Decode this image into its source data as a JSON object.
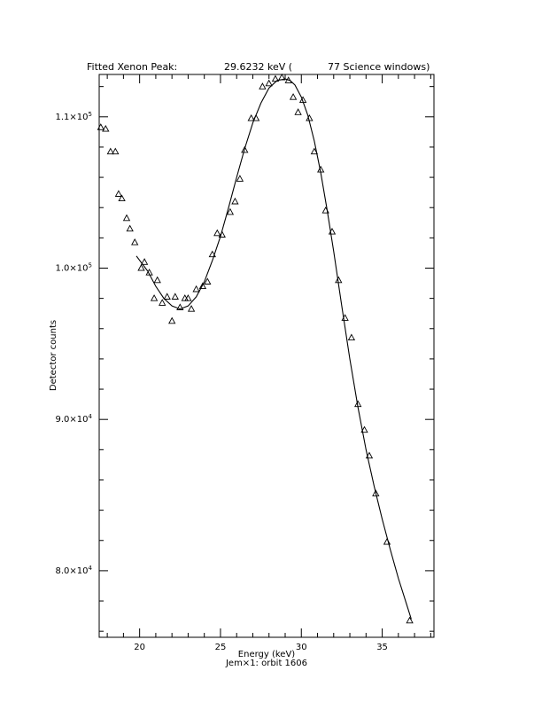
{
  "chart_data": {
    "type": "scatter",
    "title_parts": {
      "label": "Fitted Xenon Peak:",
      "energy": "29.6232 keV (",
      "windows": "77 Science windows)"
    },
    "xlabel": "Energy (keV)",
    "ylabel": "Detector counts",
    "subtitle": "Jem×1: orbit 1606",
    "xlim": [
      17.5,
      38.2
    ],
    "ylim": [
      75600,
      112800
    ],
    "x_ticks": [
      20,
      25,
      30,
      35
    ],
    "x_tick_labels": [
      "20",
      "25",
      "30",
      "35"
    ],
    "y_ticks": [
      80000,
      90000,
      100000,
      110000
    ],
    "y_tick_labels": [
      {
        "mant": "8.0×10",
        "exp": "4"
      },
      {
        "mant": "9.0×10",
        "exp": "4"
      },
      {
        "mant": "1.0×10",
        "exp": "5"
      },
      {
        "mant": "1.1×10",
        "exp": "5"
      }
    ],
    "grid": false,
    "series": [
      {
        "marker": "triangle",
        "points": [
          [
            17.6,
            109300
          ],
          [
            17.9,
            109200
          ],
          [
            18.2,
            107700
          ],
          [
            18.5,
            107700
          ],
          [
            18.7,
            104900
          ],
          [
            18.9,
            104600
          ],
          [
            19.2,
            103300
          ],
          [
            19.4,
            102600
          ],
          [
            19.7,
            101700
          ],
          [
            20.1,
            100000
          ],
          [
            20.3,
            100400
          ],
          [
            20.6,
            99700
          ],
          [
            20.9,
            98000
          ],
          [
            21.1,
            99200
          ],
          [
            21.4,
            97700
          ],
          [
            21.7,
            98100
          ],
          [
            22.0,
            96500
          ],
          [
            22.2,
            98100
          ],
          [
            22.5,
            97400
          ],
          [
            22.8,
            98000
          ],
          [
            23.0,
            98000
          ],
          [
            23.2,
            97300
          ],
          [
            23.5,
            98600
          ],
          [
            23.9,
            98800
          ],
          [
            24.2,
            99100
          ],
          [
            24.5,
            100900
          ],
          [
            24.8,
            102300
          ],
          [
            25.1,
            102200
          ],
          [
            25.6,
            103700
          ],
          [
            25.9,
            104400
          ],
          [
            26.2,
            105900
          ],
          [
            26.5,
            107800
          ],
          [
            26.9,
            109900
          ],
          [
            27.2,
            109900
          ],
          [
            27.6,
            112000
          ],
          [
            28.0,
            112200
          ],
          [
            28.4,
            112500
          ],
          [
            28.8,
            112600
          ],
          [
            29.2,
            112400
          ],
          [
            29.5,
            111300
          ],
          [
            29.8,
            110300
          ],
          [
            30.1,
            111100
          ],
          [
            30.5,
            109900
          ],
          [
            30.8,
            107700
          ],
          [
            31.2,
            106500
          ],
          [
            31.5,
            103800
          ],
          [
            31.9,
            102400
          ],
          [
            32.3,
            99200
          ],
          [
            32.7,
            96700
          ],
          [
            33.1,
            95400
          ],
          [
            33.5,
            91000
          ],
          [
            33.9,
            89300
          ],
          [
            34.2,
            87600
          ],
          [
            34.6,
            85100
          ],
          [
            35.3,
            81900
          ],
          [
            36.7,
            76700
          ]
        ]
      }
    ],
    "fit_curve": [
      [
        19.8,
        100800
      ],
      [
        20.5,
        99800
      ],
      [
        21.0,
        98800
      ],
      [
        21.5,
        98000
      ],
      [
        22.0,
        97500
      ],
      [
        22.5,
        97300
      ],
      [
        23.0,
        97500
      ],
      [
        23.5,
        98100
      ],
      [
        24.0,
        99100
      ],
      [
        24.5,
        100500
      ],
      [
        25.0,
        102100
      ],
      [
        25.5,
        104000
      ],
      [
        26.0,
        106000
      ],
      [
        26.5,
        107900
      ],
      [
        27.0,
        109600
      ],
      [
        27.5,
        110900
      ],
      [
        28.0,
        111900
      ],
      [
        28.5,
        112400
      ],
      [
        29.0,
        112500
      ],
      [
        29.3,
        112400
      ],
      [
        29.6,
        112100
      ],
      [
        30.0,
        111300
      ],
      [
        30.4,
        110100
      ],
      [
        30.8,
        108400
      ],
      [
        31.2,
        106300
      ],
      [
        31.6,
        103800
      ],
      [
        32.0,
        101100
      ],
      [
        32.5,
        97500
      ],
      [
        33.0,
        94000
      ],
      [
        33.5,
        90800
      ],
      [
        34.0,
        88000
      ],
      [
        34.5,
        85600
      ],
      [
        35.0,
        83400
      ],
      [
        35.5,
        81400
      ],
      [
        36.0,
        79500
      ],
      [
        36.5,
        77800
      ],
      [
        36.8,
        76800
      ]
    ]
  }
}
